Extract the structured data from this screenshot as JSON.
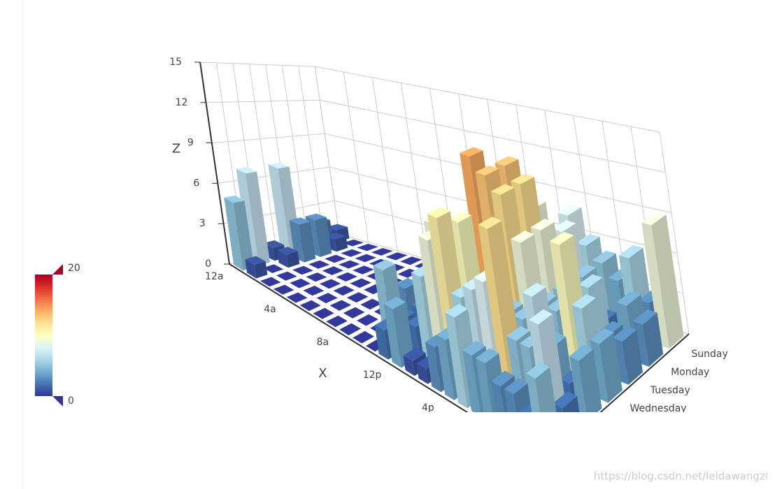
{
  "chart_data": {
    "type": "bar3d",
    "x_name": "X",
    "z_name": "Z",
    "x_categories": [
      "12a",
      null,
      null,
      null,
      "4a",
      null,
      null,
      null,
      "8a",
      null,
      null,
      null,
      "12p",
      null,
      null,
      null,
      "4p",
      null,
      null,
      null,
      null,
      null,
      null,
      null
    ],
    "y_categories": [
      "Sunday",
      "Monday",
      "Tuesday",
      "Wednesday",
      null,
      null,
      null
    ],
    "values": [
      [
        1,
        0,
        0,
        0,
        0,
        0,
        0,
        0,
        0,
        0,
        1,
        2,
        3,
        2,
        4,
        5,
        6,
        8,
        6,
        5,
        4,
        6,
        3,
        9
      ],
      [
        2,
        1,
        0,
        0,
        0,
        0,
        0,
        0,
        0,
        0,
        2,
        2,
        1,
        5,
        3,
        7,
        9,
        6,
        8,
        5,
        2,
        1,
        4,
        3
      ],
      [
        1,
        3,
        0,
        0,
        0,
        0,
        0,
        0,
        0,
        0,
        0,
        1,
        3,
        5,
        4,
        7,
        13,
        12,
        9,
        5,
        4,
        6,
        3,
        3
      ],
      [
        7,
        3,
        0,
        0,
        0,
        0,
        0,
        0,
        0,
        0,
        1,
        0,
        5,
        4,
        7,
        14,
        13,
        12,
        9,
        5,
        5,
        10,
        6,
        4
      ],
      [
        1,
        1,
        0,
        0,
        0,
        0,
        0,
        0,
        0,
        0,
        3,
        2,
        1,
        9,
        8,
        10,
        6,
        5,
        5,
        5,
        7,
        4,
        2,
        4
      ],
      [
        7,
        0,
        0,
        0,
        0,
        0,
        0,
        0,
        0,
        0,
        5,
        2,
        2,
        6,
        9,
        11,
        6,
        7,
        8,
        12,
        5,
        5,
        7,
        2
      ],
      [
        5,
        1,
        0,
        0,
        0,
        0,
        0,
        0,
        0,
        0,
        0,
        2,
        4,
        1,
        1,
        3,
        4,
        6,
        4,
        4,
        3,
        3,
        2,
        5
      ]
    ],
    "zlim": [
      0,
      15
    ],
    "zticks": [
      0,
      3,
      6,
      9,
      12,
      15
    ],
    "grid": true,
    "visual_map": {
      "range": [
        0,
        20
      ],
      "colors": [
        "#313695",
        "#4575b4",
        "#74add1",
        "#abd9e9",
        "#e0f3f8",
        "#ffffbf",
        "#fee090",
        "#fdae61",
        "#f46d43",
        "#d73027",
        "#a50026"
      ]
    },
    "watermark": "https://blog.csdn.net/leidawangzi"
  }
}
